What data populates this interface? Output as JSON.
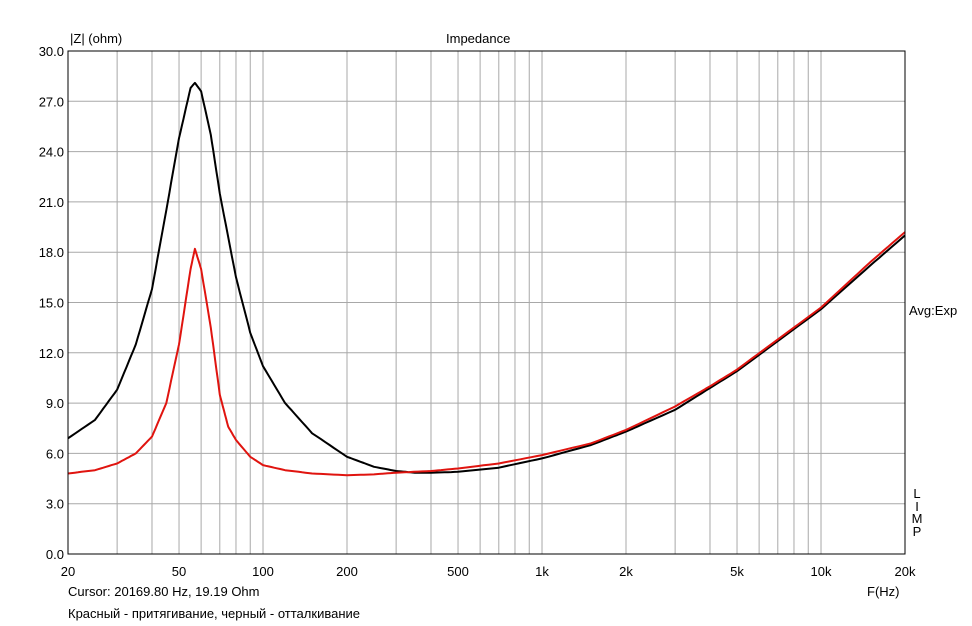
{
  "chart_data": {
    "type": "line",
    "title": "Impedance",
    "ylabel": "|Z| (ohm)",
    "xlabel": "F(Hz)",
    "xscale": "log",
    "xlim": [
      20,
      20000
    ],
    "ylim": [
      0,
      30
    ],
    "grid": true,
    "y_ticks": [
      0,
      3,
      6,
      9,
      12,
      15,
      18,
      21,
      24,
      27,
      30
    ],
    "y_tick_labels": [
      "0.0",
      "3.0",
      "6.0",
      "9.0",
      "12.0",
      "15.0",
      "18.0",
      "21.0",
      "24.0",
      "27.0",
      "30.0"
    ],
    "x_ticks": [
      20,
      50,
      100,
      200,
      500,
      1000,
      2000,
      5000,
      10000,
      20000
    ],
    "x_tick_labels": [
      "20",
      "50",
      "100",
      "200",
      "500",
      "1k",
      "2k",
      "5k",
      "10k",
      "20k"
    ],
    "right_labels": [
      "Avg:Exp",
      "L",
      "I",
      "M",
      "P"
    ],
    "series": [
      {
        "color": "#000000",
        "points": [
          [
            20,
            6.9
          ],
          [
            25,
            8.0
          ],
          [
            30,
            9.8
          ],
          [
            35,
            12.5
          ],
          [
            40,
            15.8
          ],
          [
            45,
            20.5
          ],
          [
            50,
            24.8
          ],
          [
            55,
            27.8
          ],
          [
            57,
            28.1
          ],
          [
            60,
            27.6
          ],
          [
            65,
            25.0
          ],
          [
            70,
            21.5
          ],
          [
            80,
            16.5
          ],
          [
            90,
            13.2
          ],
          [
            100,
            11.2
          ],
          [
            120,
            9.0
          ],
          [
            150,
            7.2
          ],
          [
            200,
            5.8
          ],
          [
            250,
            5.2
          ],
          [
            300,
            4.95
          ],
          [
            350,
            4.85
          ],
          [
            400,
            4.85
          ],
          [
            500,
            4.9
          ],
          [
            700,
            5.15
          ],
          [
            1000,
            5.7
          ],
          [
            1500,
            6.5
          ],
          [
            2000,
            7.3
          ],
          [
            3000,
            8.6
          ],
          [
            4000,
            9.9
          ],
          [
            5000,
            10.9
          ],
          [
            7000,
            12.7
          ],
          [
            10000,
            14.6
          ],
          [
            15000,
            17.2
          ],
          [
            20000,
            19.0
          ]
        ]
      },
      {
        "color": "#e0140f",
        "points": [
          [
            20,
            4.8
          ],
          [
            25,
            5.0
          ],
          [
            30,
            5.4
          ],
          [
            35,
            6.0
          ],
          [
            40,
            7.0
          ],
          [
            45,
            9.0
          ],
          [
            50,
            12.5
          ],
          [
            55,
            17.0
          ],
          [
            57,
            18.2
          ],
          [
            60,
            17.0
          ],
          [
            65,
            13.5
          ],
          [
            70,
            9.5
          ],
          [
            75,
            7.6
          ],
          [
            80,
            6.8
          ],
          [
            90,
            5.8
          ],
          [
            100,
            5.3
          ],
          [
            120,
            5.0
          ],
          [
            150,
            4.8
          ],
          [
            200,
            4.7
          ],
          [
            250,
            4.75
          ],
          [
            300,
            4.85
          ],
          [
            400,
            4.95
          ],
          [
            500,
            5.1
          ],
          [
            700,
            5.4
          ],
          [
            1000,
            5.9
          ],
          [
            1500,
            6.6
          ],
          [
            2000,
            7.4
          ],
          [
            3000,
            8.8
          ],
          [
            4000,
            10.0
          ],
          [
            5000,
            11.0
          ],
          [
            7000,
            12.8
          ],
          [
            10000,
            14.7
          ],
          [
            15000,
            17.4
          ],
          [
            20000,
            19.2
          ]
        ]
      }
    ]
  },
  "labels": {
    "ylabel": "|Z| (ohm)",
    "title": "Impedance",
    "avg": "Avg:Exp",
    "limp": "L I M P",
    "xlabel": "F(Hz)",
    "cursor": "Cursor: 20169.80 Hz, 19.19 Ohm",
    "caption": "Красный - притягивание, черный - отталкивание"
  }
}
